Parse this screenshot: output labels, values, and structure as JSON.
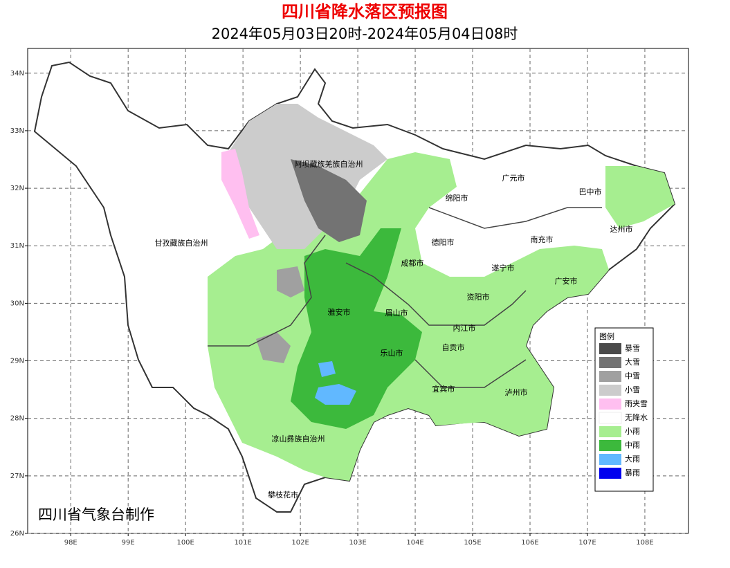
{
  "header": {
    "title": "四川省降水落区预报图",
    "subtitle": "2024年05月03日20时-2024年05月04日08时"
  },
  "map": {
    "xlim": [
      97.25,
      108.76
    ],
    "ylim": [
      26,
      34.43
    ],
    "xticks": [
      {
        "value": 98,
        "label": "98E"
      },
      {
        "value": 99,
        "label": "99E"
      },
      {
        "value": 100,
        "label": "100E"
      },
      {
        "value": 101,
        "label": "101E"
      },
      {
        "value": 102,
        "label": "102E"
      },
      {
        "value": 103,
        "label": "103E"
      },
      {
        "value": 104,
        "label": "104E"
      },
      {
        "value": 105,
        "label": "105E"
      },
      {
        "value": 106,
        "label": "106E"
      },
      {
        "value": 107,
        "label": "107E"
      },
      {
        "value": 108,
        "label": "108E"
      }
    ],
    "yticks": [
      {
        "value": 26,
        "label": "26N"
      },
      {
        "value": 27,
        "label": "27N"
      },
      {
        "value": 28,
        "label": "28N"
      },
      {
        "value": 29,
        "label": "29N"
      },
      {
        "value": 30,
        "label": "30N"
      },
      {
        "value": 31,
        "label": "31N"
      },
      {
        "value": 32,
        "label": "32N"
      },
      {
        "value": 33,
        "label": "33N"
      },
      {
        "value": 34,
        "label": "34N"
      }
    ],
    "grid": true,
    "cities": [
      "阿坝藏族羌族自治州",
      "甘孜藏族自治州",
      "广元市",
      "巴中市",
      "绵阳市",
      "德阳市",
      "南充市",
      "达州市",
      "成都市",
      "遂宁市",
      "广安市",
      "资阳市",
      "雅安市",
      "眉山市",
      "内江市",
      "自贡市",
      "乐山市",
      "宜宾市",
      "泸州市",
      "凉山彝族自治州",
      "攀枝花市"
    ],
    "credit": "四川省气象台制作"
  },
  "legend": {
    "title": "图例",
    "items": [
      {
        "name": "暴雪",
        "color": "#4a4a4a"
      },
      {
        "name": "大雪",
        "color": "#737373"
      },
      {
        "name": "中雪",
        "color": "#a0a0a0"
      },
      {
        "name": "小雪",
        "color": "#cccccc"
      },
      {
        "name": "雨夹雪",
        "color": "#ffbff0"
      },
      {
        "name": "无降水",
        "color": "#ffffff"
      },
      {
        "name": "小雨",
        "color": "#a6ee90"
      },
      {
        "name": "中雨",
        "color": "#3cb93c"
      },
      {
        "name": "大雨",
        "color": "#61b8ff"
      },
      {
        "name": "暴雨",
        "color": "#0000ee"
      }
    ]
  }
}
